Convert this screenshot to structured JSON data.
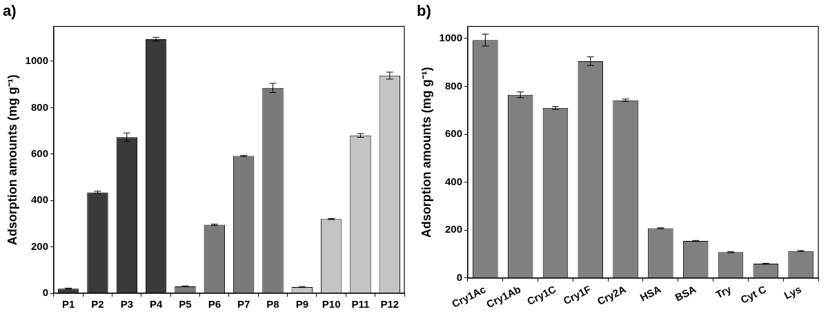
{
  "chart_data": [
    {
      "type": "bar",
      "title": "a)",
      "y_label": "Adsorption amounts (mg g⁻¹)",
      "categories": [
        "P1",
        "P2",
        "P3",
        "P4",
        "P5",
        "P6",
        "P7",
        "P8",
        "P9",
        "P10",
        "P11",
        "P12"
      ],
      "values": [
        20,
        435,
        673,
        1095,
        30,
        295,
        592,
        885,
        27,
        320,
        680,
        938
      ],
      "errors": [
        2,
        5,
        18,
        8,
        2,
        3,
        2,
        20,
        2,
        2,
        8,
        15
      ],
      "colors": [
        "#3a3a3a",
        "#3a3a3a",
        "#3a3a3a",
        "#3a3a3a",
        "#7a7a7a",
        "#7a7a7a",
        "#7a7a7a",
        "#7a7a7a",
        "#c4c4c4",
        "#c4c4c4",
        "#c4c4c4",
        "#c4c4c4"
      ],
      "ylim": [
        0,
        1150
      ],
      "yticks": [
        0,
        200,
        400,
        600,
        800,
        1000
      ],
      "grid": false
    },
    {
      "type": "bar",
      "title": "b)",
      "y_label": "Adsorption amounts (mg g⁻¹)",
      "categories": [
        "Cry1Ac",
        "Cry1Ab",
        "Cry1C",
        "Cry1F",
        "Cry2A",
        "HSA",
        "BSA",
        "Try",
        "Cyt C",
        "Lys"
      ],
      "values": [
        993,
        765,
        710,
        905,
        742,
        208,
        155,
        108,
        60,
        113
      ],
      "errors": [
        25,
        12,
        6,
        18,
        5,
        2,
        2,
        2,
        2,
        2
      ],
      "color": "#808080",
      "ylim": [
        0,
        1050
      ],
      "yticks": [
        0,
        200,
        400,
        600,
        800,
        1000
      ],
      "grid": false
    }
  ]
}
